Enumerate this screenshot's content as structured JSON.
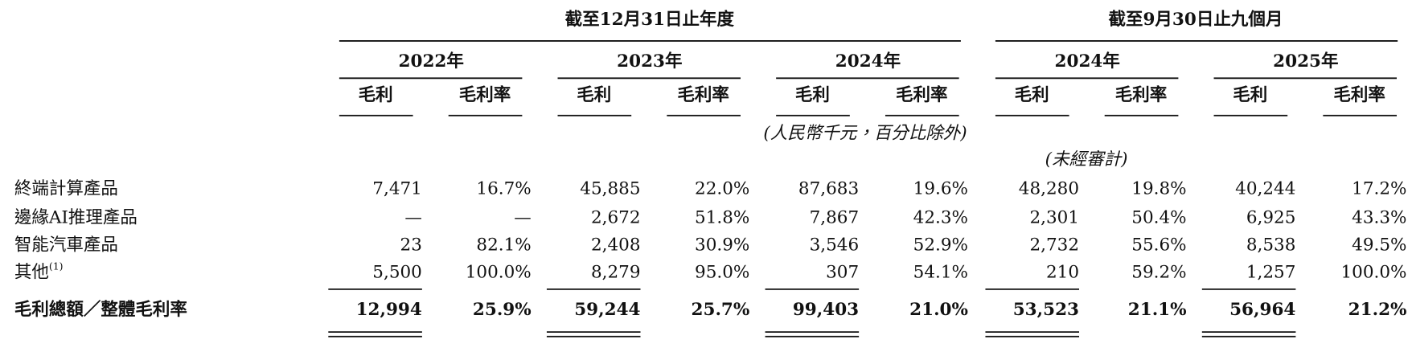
{
  "header": {
    "groups": [
      "截至12月31日止年度",
      "截至9月30日止九個月"
    ],
    "years": [
      "2022年",
      "2023年",
      "2024年",
      "2024年",
      "2025年"
    ],
    "column_headers": [
      "毛利",
      "毛利率",
      "毛利",
      "毛利率",
      "毛利",
      "毛利率",
      "毛利",
      "毛利率",
      "毛利",
      "毛利率"
    ],
    "unit_note": "(人民幣千元，百分比除外)",
    "unaudited_note": "(未經審計)"
  },
  "table": {
    "rows": [
      {
        "label": "終端計算產品",
        "cells": [
          "7,471",
          "16.7%",
          "45,885",
          "22.0%",
          "87,683",
          "19.6%",
          "48,280",
          "19.8%",
          "40,244",
          "17.2%"
        ]
      },
      {
        "label": "邊緣AI推理產品",
        "cells": [
          "—",
          "—",
          "2,672",
          "51.8%",
          "7,867",
          "42.3%",
          "2,301",
          "50.4%",
          "6,925",
          "43.3%"
        ]
      },
      {
        "label": "智能汽車產品",
        "cells": [
          "23",
          "82.1%",
          "2,408",
          "30.9%",
          "3,546",
          "52.9%",
          "2,732",
          "55.6%",
          "8,538",
          "49.5%"
        ]
      },
      {
        "label": "其他",
        "note": "(1)",
        "cells": [
          "5,500",
          "100.0%",
          "8,279",
          "95.0%",
          "307",
          "54.1%",
          "210",
          "59.2%",
          "1,257",
          "100.0%"
        ]
      }
    ],
    "total": {
      "label": "毛利總額／整體毛利率",
      "cells": [
        "12,994",
        "25.9%",
        "59,244",
        "25.7%",
        "99,403",
        "21.0%",
        "53,523",
        "21.1%",
        "56,964",
        "21.2%"
      ]
    }
  }
}
